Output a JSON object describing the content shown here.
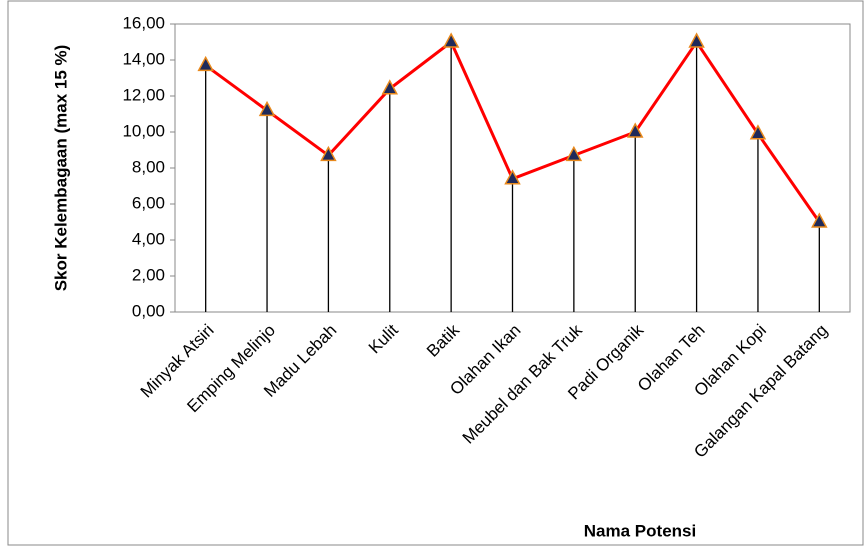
{
  "chart_data": {
    "type": "line",
    "xlabel": "Nama Potensi",
    "ylabel": "Skor Kelembagaan (max 15 %)",
    "categories": [
      "Minyak Atsiri",
      "Emping Melinjo",
      "Madu Lebah",
      "Kulit",
      "Batik",
      "Olahan Ikan",
      "Meubel dan Bak Truk",
      "Padi Organik",
      "Olahan Teh",
      "Olahan Kopi",
      "Galangan Kapal Batang"
    ],
    "series": [
      {
        "name": "Skor",
        "color": "#ff0000",
        "values": [
          13.7,
          11.2,
          8.7,
          12.4,
          15.0,
          7.4,
          8.7,
          10.0,
          15.0,
          9.9,
          5.0
        ]
      }
    ],
    "ylim": [
      0,
      16
    ],
    "yticks": [
      {
        "value": 0,
        "label": "0,00"
      },
      {
        "value": 2,
        "label": "2,00"
      },
      {
        "value": 4,
        "label": "4,00"
      },
      {
        "value": 6,
        "label": "6,00"
      },
      {
        "value": 8,
        "label": "8,00"
      },
      {
        "value": 10,
        "label": "10,00"
      },
      {
        "value": 12,
        "label": "12,00"
      },
      {
        "value": 14,
        "label": "14,00"
      },
      {
        "value": 16,
        "label": "16,00"
      }
    ],
    "marker_color": "#1f2a5a",
    "marker_edge": "#e8891c",
    "drop_lines": true
  }
}
